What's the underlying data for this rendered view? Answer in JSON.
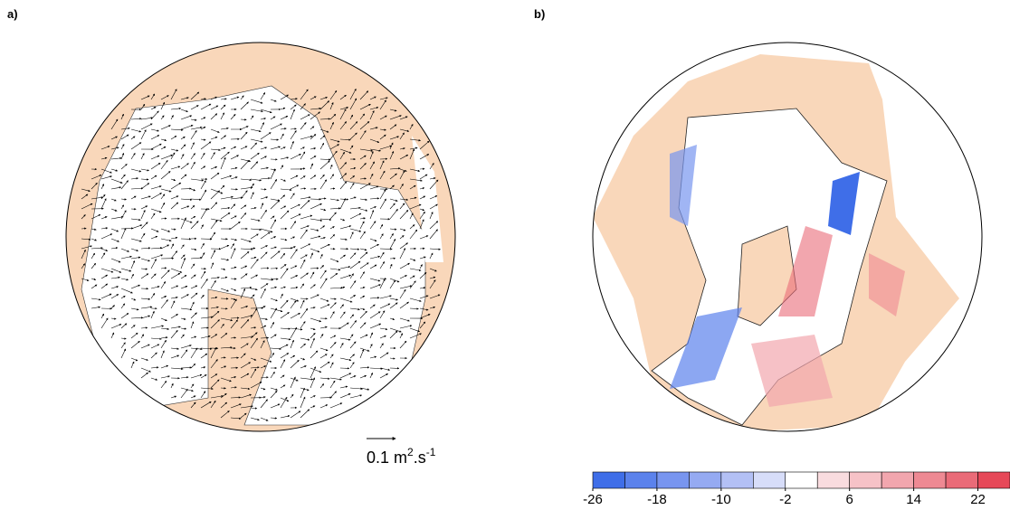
{
  "panels": [
    {
      "label": "a)",
      "unit": {
        "prefix": "0.1 m",
        "exp1": "2",
        "mid": ".s",
        "exp2": "-1"
      }
    },
    {
      "label": "b)"
    }
  ],
  "colorbar": {
    "lim": [
      -26,
      26
    ],
    "ticks": [
      -26,
      -18,
      -10,
      -2,
      6,
      14,
      22
    ],
    "colors": [
      "#3f6ee8",
      "#5b82ec",
      "#7895ef",
      "#95aaf2",
      "#b3c0f5",
      "#d7ddf9",
      "#ffffff",
      "#f9dcdf",
      "#f6c2c7",
      "#f2a6ae",
      "#ee8993",
      "#ea6b78",
      "#e64858"
    ]
  }
}
